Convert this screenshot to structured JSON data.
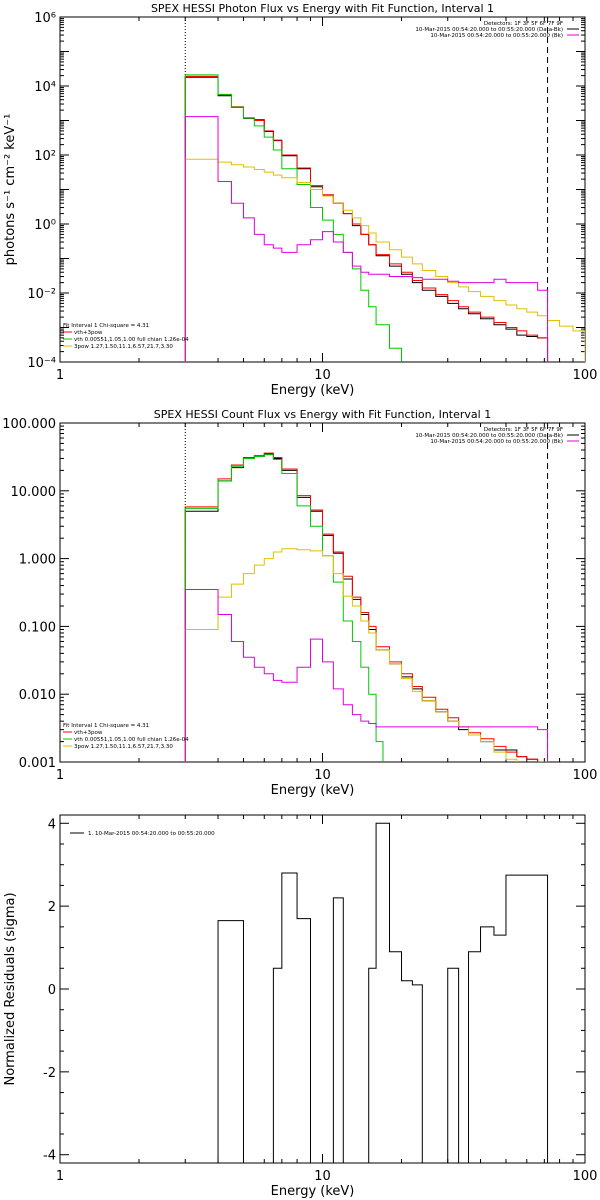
{
  "chart_data": [
    {
      "type": "line",
      "title": "SPEX HESSI Photon Flux vs Energy with Fit Function, Interval 1",
      "xlabel": "Energy (keV)",
      "ylabel": "photons s⁻¹ cm⁻² keV⁻¹",
      "xscale": "log",
      "yscale": "log",
      "xlim": [
        1,
        100
      ],
      "ylim": [
        0.0001,
        1000000
      ],
      "x_ticks": [
        1,
        10,
        100
      ],
      "x_tick_labels": [
        "1",
        "10",
        "100"
      ],
      "y_ticks": [
        0.0001,
        0.01,
        1,
        100,
        10000,
        1000000
      ],
      "y_tick_labels": [
        "10⁻⁴",
        "10⁻²",
        "10⁰",
        "10²",
        "10⁴",
        "10⁶"
      ],
      "grid": false,
      "vlines": [
        {
          "x": 3.0,
          "style": "dotted"
        },
        {
          "x": 72,
          "style": "dashed"
        }
      ],
      "info_top_right": [
        "Detectors: 1F 3F 5F 6F 7F 9F",
        "10-Mar-2015 00:54:20.000 to 00:55:20.000 (Data-Bk)",
        "10-Mar-2015 00:54:20.000 to 00:55:20.000 (Bk)"
      ],
      "legend_bottom_left": [
        "Fit Interval 1   Chi-square = 4.31",
        "vth+3pow",
        "vth 0.00551,1.05,1.00  full chian 1.26e-04",
        "3pow 1.27,1.50,11.1,6.57,21.7,3.30"
      ],
      "series": [
        {
          "name": "Data-Bk",
          "color": "#000000",
          "edges": [
            3.0,
            3.5,
            4.0,
            4.5,
            5.0,
            5.5,
            6.0,
            6.5,
            7.0,
            8.0,
            9.0,
            10.0,
            11.0,
            12.0,
            13.0,
            14.0,
            15.0,
            16.0,
            18.0,
            20.0,
            22.0,
            24.0,
            27.0,
            30.0,
            33.0,
            36.0,
            40.0,
            45.0,
            50.0,
            55.0,
            60.0,
            66.0,
            72.0
          ],
          "values": [
            18000,
            18000,
            5200,
            2400,
            1150,
            1050,
            480,
            260,
            95,
            40,
            12,
            7,
            4,
            2,
            0.9,
            0.5,
            0.25,
            0.12,
            0.06,
            0.035,
            0.02,
            0.012,
            0.008,
            0.005,
            0.0035,
            0.0025,
            0.0018,
            0.0012,
            0.0009,
            0.0006,
            0.00055,
            0.0005
          ]
        },
        {
          "name": "vth+3pow",
          "color": "#ff0000",
          "edges": [
            3.0,
            3.5,
            4.0,
            4.5,
            5.0,
            5.5,
            6.0,
            6.5,
            7.0,
            8.0,
            9.0,
            10.0,
            11.0,
            12.0,
            13.0,
            14.0,
            15.0,
            16.0,
            18.0,
            20.0,
            22.0,
            24.0,
            27.0,
            30.0,
            33.0,
            36.0,
            40.0,
            45.0,
            50.0,
            55.0,
            60.0,
            66.0,
            72.0
          ],
          "values": [
            19000,
            19000,
            5500,
            2500,
            1200,
            1000,
            500,
            270,
            100,
            42,
            13,
            7,
            4,
            2,
            1,
            0.5,
            0.25,
            0.13,
            0.07,
            0.04,
            0.023,
            0.014,
            0.009,
            0.006,
            0.004,
            0.0028,
            0.002,
            0.0014,
            0.001,
            0.0008,
            0.0006,
            0.0005
          ]
        },
        {
          "name": "vth",
          "color": "#00c800",
          "edges": [
            3.0,
            3.5,
            4.0,
            4.5,
            5.0,
            5.5,
            6.0,
            6.5,
            7.0,
            8.0,
            9.0,
            10.0,
            11.0,
            12.0,
            13.0,
            14.0,
            15.0,
            16.0,
            18.0,
            20.0
          ],
          "values": [
            21000,
            21000,
            5700,
            2450,
            1180,
            700,
            330,
            140,
            40,
            14,
            3,
            1.3,
            0.5,
            0.15,
            0.05,
            0.012,
            0.004,
            0.0012,
            0.00025
          ]
        },
        {
          "name": "3pow",
          "color": "#e0c000",
          "edges": [
            3.0,
            3.5,
            4.0,
            4.5,
            5.0,
            5.5,
            6.0,
            6.5,
            7.0,
            8.0,
            9.0,
            10.0,
            11.0,
            12.0,
            13.0,
            14.0,
            15.0,
            16.0,
            18.0,
            20.0,
            22.0,
            24.0,
            27.0,
            30.0,
            33.0,
            36.0,
            40.0,
            45.0,
            50.0,
            55.0,
            60.0,
            66.0,
            72.0,
            80.0,
            90.0,
            100.0
          ],
          "values": [
            75,
            75,
            62,
            52,
            45,
            38,
            32,
            26,
            22,
            16,
            10,
            6.5,
            4,
            2.5,
            1.5,
            0.9,
            0.55,
            0.3,
            0.18,
            0.11,
            0.07,
            0.045,
            0.03,
            0.02,
            0.015,
            0.011,
            0.008,
            0.006,
            0.0045,
            0.0035,
            0.0028,
            0.0022,
            0.0016,
            0.0011,
            0.0008
          ]
        },
        {
          "name": "Bk",
          "color": "#e000e0",
          "edges": [
            3.0,
            3.5,
            4.0,
            4.5,
            5.0,
            5.5,
            6.0,
            6.5,
            7.0,
            8.0,
            9.0,
            10.0,
            11.0,
            12.0,
            13.0,
            14.0,
            15.0,
            16.0,
            18.0,
            20.0,
            22.0,
            24.0,
            27.0,
            30.0,
            33.0,
            36.0,
            40.0,
            45.0,
            50.0,
            55.0,
            60.0,
            66.0,
            72.0
          ],
          "values": [
            1300,
            1300,
            17,
            4,
            1.5,
            0.5,
            0.25,
            0.2,
            0.15,
            0.25,
            0.35,
            0.6,
            0.3,
            0.15,
            0.06,
            0.04,
            0.035,
            0.035,
            0.03,
            0.03,
            0.028,
            0.025,
            0.025,
            0.022,
            0.02,
            0.02,
            0.02,
            0.025,
            0.02,
            0.02,
            0.02,
            0.012
          ]
        }
      ]
    },
    {
      "type": "line",
      "title": "SPEX HESSI Count Flux vs Energy with Fit Function, Interval 1",
      "xlabel": "Energy (keV)",
      "ylabel": "",
      "xscale": "log",
      "yscale": "log",
      "xlim": [
        1,
        100
      ],
      "ylim": [
        0.001,
        100
      ],
      "x_ticks": [
        1,
        10,
        100
      ],
      "x_tick_labels": [
        "1",
        "10",
        "100"
      ],
      "y_ticks": [
        0.001,
        0.01,
        0.1,
        1,
        10,
        100
      ],
      "y_tick_labels": [
        "0.001",
        "0.010",
        "0.100",
        "1.000",
        "10.000",
        "100.000"
      ],
      "grid": false,
      "vlines": [
        {
          "x": 3.0,
          "style": "dotted"
        },
        {
          "x": 72,
          "style": "dashed"
        }
      ],
      "info_top_right": [
        "Detectors: 1F 3F 5F 6F 7F 9F",
        "10-Mar-2015 00:54:20.000 to 00:55:20.000 (Data-Bk)",
        "10-Mar-2015 00:54:20.000 to 00:55:20.000 (Bk)"
      ],
      "legend_bottom_left": [
        "Fit Interval 1   Chi-square = 4.31",
        "vth+3pow",
        "vth 0.00551,1.05,1.00  full chian 1.26e-04",
        "3pow 1.27,1.50,11.1,6.57,21.7,3.30"
      ],
      "series": [
        {
          "name": "Data-Bk",
          "color": "#000000",
          "edges": [
            3.0,
            3.5,
            4.0,
            4.5,
            5.0,
            5.5,
            6.0,
            6.5,
            7.0,
            8.0,
            9.0,
            10.0,
            11.0,
            12.0,
            13.0,
            14.0,
            15.0,
            16.0,
            18.0,
            20.0,
            22.0,
            24.0,
            27.0,
            30.0,
            33.0,
            36.0,
            40.0,
            45.0,
            50.0,
            55.0,
            60.0,
            66.0,
            72.0
          ],
          "values": [
            5.0,
            5.0,
            14,
            22,
            30,
            32,
            35,
            30,
            20,
            8,
            5,
            2.2,
            1.2,
            0.5,
            0.25,
            0.15,
            0.09,
            0.045,
            0.028,
            0.018,
            0.012,
            0.008,
            0.0055,
            0.004,
            0.003,
            0.0025,
            0.002,
            0.0015,
            0.0015,
            0.0012,
            0.0011,
            0.001
          ]
        },
        {
          "name": "vth+3pow",
          "color": "#ff0000",
          "edges": [
            3.0,
            3.5,
            4.0,
            4.5,
            5.0,
            5.5,
            6.0,
            6.5,
            7.0,
            8.0,
            9.0,
            10.0,
            11.0,
            12.0,
            13.0,
            14.0,
            15.0,
            16.0,
            18.0,
            20.0,
            22.0,
            24.0,
            27.0,
            30.0,
            33.0,
            36.0,
            40.0,
            45.0,
            50.0,
            55.0,
            60.0,
            66.0,
            72.0
          ],
          "values": [
            5.8,
            5.8,
            15,
            24,
            31,
            33,
            36,
            31,
            21,
            8.5,
            5.2,
            2.3,
            1.25,
            0.55,
            0.27,
            0.16,
            0.1,
            0.05,
            0.03,
            0.02,
            0.013,
            0.009,
            0.006,
            0.0045,
            0.0033,
            0.0027,
            0.0022,
            0.0017,
            0.0014,
            0.0012,
            0.0011,
            0.001
          ]
        },
        {
          "name": "vth",
          "color": "#00c800",
          "edges": [
            3.0,
            3.5,
            4.0,
            4.5,
            5.0,
            5.5,
            6.0,
            6.5,
            7.0,
            8.0,
            9.0,
            10.0,
            11.0,
            12.0,
            13.0,
            14.0,
            15.0,
            16.0,
            17.0
          ],
          "values": [
            5.5,
            5.5,
            14,
            23,
            30,
            32,
            34,
            29,
            18,
            6,
            3,
            1.1,
            0.45,
            0.12,
            0.06,
            0.025,
            0.01,
            0.002
          ]
        },
        {
          "name": "3pow",
          "color": "#e0c000",
          "edges": [
            3.0,
            3.5,
            4.0,
            4.5,
            5.0,
            5.5,
            6.0,
            6.5,
            7.0,
            8.0,
            9.0,
            10.0,
            11.0,
            12.0,
            13.0,
            14.0,
            15.0,
            16.0,
            18.0,
            20.0,
            22.0,
            24.0,
            27.0,
            30.0,
            33.0,
            36.0,
            40.0,
            45.0,
            50.0,
            55.0,
            60.0
          ],
          "values": [
            0.09,
            0.09,
            0.27,
            0.42,
            0.6,
            0.8,
            1.0,
            1.25,
            1.4,
            1.35,
            1.3,
            1.1,
            0.6,
            0.28,
            0.2,
            0.12,
            0.08,
            0.045,
            0.028,
            0.017,
            0.011,
            0.008,
            0.0055,
            0.004,
            0.0033,
            0.0025,
            0.002,
            0.0014,
            0.0011,
            0.0009
          ]
        },
        {
          "name": "Bk",
          "color": "#e000e0",
          "edges": [
            3.0,
            3.5,
            4.0,
            4.5,
            5.0,
            5.5,
            6.0,
            6.5,
            7.0,
            8.0,
            9.0,
            10.0,
            11.0,
            12.0,
            13.0,
            14.0,
            15.0,
            16.0,
            18.0,
            20.0,
            22.0,
            24.0,
            27.0,
            30.0,
            33.0,
            36.0,
            40.0,
            45.0,
            50.0,
            55.0,
            60.0,
            66.0,
            72.0
          ],
          "values": [
            0.35,
            0.35,
            0.15,
            0.06,
            0.035,
            0.025,
            0.02,
            0.016,
            0.015,
            0.025,
            0.065,
            0.03,
            0.012,
            0.007,
            0.005,
            0.004,
            0.0037,
            0.0033,
            0.0033,
            0.0033,
            0.0033,
            0.0033,
            0.0033,
            0.0033,
            0.0033,
            0.0033,
            0.0033,
            0.0033,
            0.0033,
            0.0033,
            0.0033,
            0.003
          ]
        }
      ]
    },
    {
      "type": "line",
      "title": "",
      "xlabel": "Energy (keV)",
      "ylabel": "Normalized Residuals (sigma)",
      "xscale": "log",
      "yscale": "linear",
      "xlim": [
        1,
        100
      ],
      "ylim": [
        -4.2,
        4.2
      ],
      "x_ticks": [
        1,
        10,
        100
      ],
      "x_tick_labels": [
        "1",
        "10",
        "100"
      ],
      "y_ticks": [
        -4,
        -2,
        0,
        2,
        4
      ],
      "y_tick_labels": [
        "-4",
        "-2",
        "0",
        "2",
        "4"
      ],
      "grid": false,
      "legend_top_left": [
        "1. 10-Mar-2015 00:54:20.000 to 00:55:20.000"
      ],
      "series": [
        {
          "name": "1. 10-Mar-2015 00:54:20.000 to 00:55:20.000",
          "color": "#000000",
          "edges": [
            3.0,
            3.5,
            4.0,
            4.5,
            5.0,
            5.5,
            6.0,
            6.5,
            7.0,
            8.0,
            9.0,
            10.0,
            11.0,
            12.0,
            13.0,
            14.0,
            15.0,
            16.0,
            18.0,
            20.0,
            22.0,
            24.0,
            27.0,
            30.0,
            33.0,
            36.0,
            40.0,
            45.0,
            50.0,
            55.0,
            60.0,
            66.0,
            72.0
          ],
          "values": [
            -0.3,
            -0.3,
            1.65,
            1.65,
            -0.5,
            -0.5,
            -4.1,
            0.5,
            2.8,
            1.7,
            -1.8,
            -0.3,
            2.2,
            -0.3,
            -1.8,
            -1.8,
            0.5,
            4.0,
            0.9,
            0.2,
            0.1,
            -0.9,
            -1.8,
            0.5,
            -1.8,
            0.9,
            1.5,
            1.3,
            2.75,
            2.75,
            2.75,
            2.75
          ]
        }
      ]
    }
  ]
}
